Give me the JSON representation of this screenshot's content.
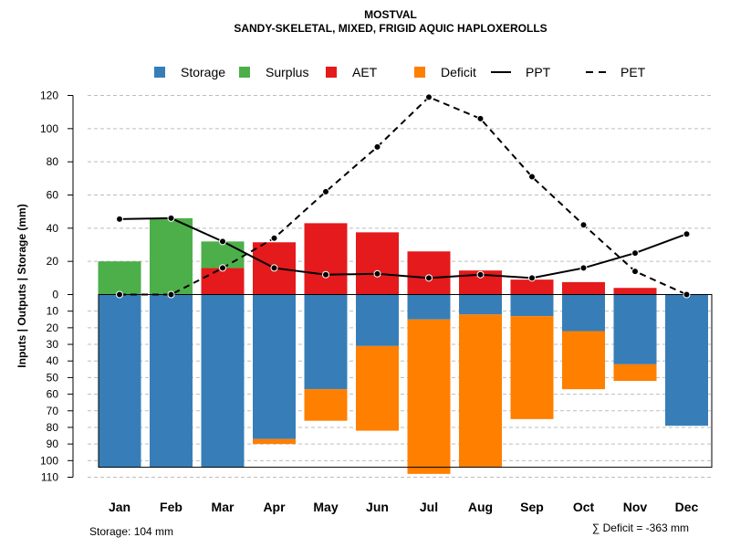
{
  "chart_data": {
    "type": "bar",
    "title": "MOSTVAL",
    "subtitle": "SANDY-SKELETAL, MIXED, FRIGID AQUIC HAPLOXEROLLS",
    "ylabel": "Inputs | Outputs | Storage    (mm)",
    "upper_ylim": [
      0,
      120
    ],
    "lower_ylim": [
      0,
      110
    ],
    "upper_ticks": [
      "0",
      "20",
      "40",
      "60",
      "80",
      "100",
      "120"
    ],
    "lower_ticks": [
      "10",
      "20",
      "30",
      "40",
      "50",
      "60",
      "70",
      "80",
      "90",
      "100",
      "110"
    ],
    "categories": [
      "Jan",
      "Feb",
      "Mar",
      "Apr",
      "May",
      "Jun",
      "Jul",
      "Aug",
      "Sep",
      "Oct",
      "Nov",
      "Dec"
    ],
    "legend": [
      {
        "label": "Storage",
        "kind": "box",
        "color": "#377EB8"
      },
      {
        "label": "Surplus",
        "kind": "box",
        "color": "#4DAF4A"
      },
      {
        "label": "AET",
        "kind": "box",
        "color": "#E41A1C"
      },
      {
        "label": "Deficit",
        "kind": "box",
        "color": "#FF7F00"
      },
      {
        "label": "PPT",
        "kind": "solid",
        "color": "#000000"
      },
      {
        "label": "PET",
        "kind": "dashed",
        "color": "#000000"
      }
    ],
    "series": [
      {
        "name": "Storage",
        "color": "#377EB8",
        "values": [
          104,
          104,
          104,
          87,
          57,
          31,
          15,
          12,
          13,
          22,
          42,
          79
        ]
      },
      {
        "name": "Surplus",
        "color": "#4DAF4A",
        "values": [
          20,
          46,
          16,
          0,
          0,
          0,
          0,
          0,
          0,
          0,
          0,
          0
        ]
      },
      {
        "name": "AET",
        "color": "#E41A1C",
        "values": [
          0,
          0,
          16,
          31.5,
          43,
          37.5,
          26,
          14.5,
          9,
          7.5,
          4,
          0
        ]
      },
      {
        "name": "Deficit",
        "color": "#FF7F00",
        "values": [
          0,
          0,
          0,
          3,
          19,
          51,
          93,
          92,
          62,
          35,
          10,
          0
        ]
      },
      {
        "name": "PPT",
        "color": "#000000",
        "values": [
          45.5,
          46,
          32,
          16,
          12,
          12.5,
          10,
          12,
          10,
          16,
          25,
          36.5
        ]
      },
      {
        "name": "PET",
        "color": "#000000",
        "values": [
          0,
          0,
          16,
          34,
          62,
          89,
          119,
          106,
          71,
          42,
          14,
          0
        ]
      }
    ],
    "storage_capacity": 104
  },
  "footer": {
    "storage_note": "Storage: 104 mm",
    "deficit_note": "∑ Deficit = -363 mm"
  }
}
